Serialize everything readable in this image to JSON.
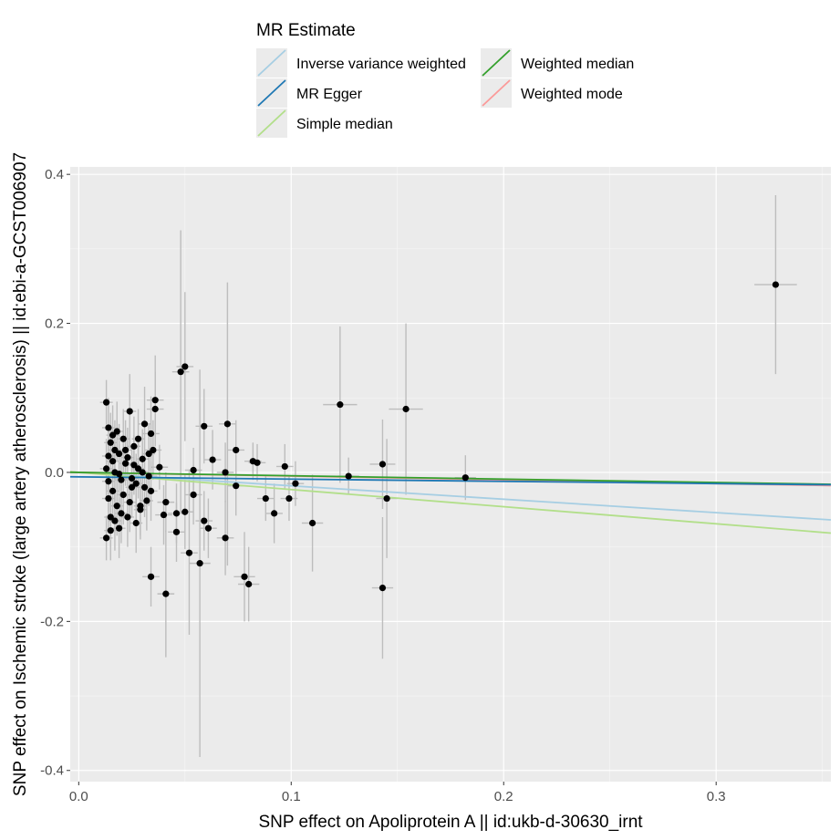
{
  "chart_data": {
    "type": "scatter",
    "xlabel": "SNP effect on Apoliprotein A || id:ukb-d-30630_irnt",
    "ylabel": "SNP effect on Ischemic stroke (large artery atherosclerosis) || id:ebi-a-GCST006907",
    "xlim": [
      -0.004,
      0.354
    ],
    "ylim": [
      -0.415,
      0.41
    ],
    "x_ticks": [
      0.0,
      0.1,
      0.2,
      0.3
    ],
    "x_tick_labels": [
      "0.0",
      "0.1",
      "0.2",
      "0.3"
    ],
    "y_ticks": [
      -0.4,
      -0.2,
      0.0,
      0.2,
      0.4
    ],
    "y_tick_labels": [
      "-0.4",
      "-0.2",
      "0.0",
      "0.2",
      "0.4"
    ],
    "grid": true,
    "legend_title": "MR Estimate",
    "legend_position": "top",
    "series": [
      {
        "name": "Inverse variance weighted",
        "color": "#a6cee3",
        "slope": -0.18,
        "intercept": 0.0
      },
      {
        "name": "MR Egger",
        "color": "#1f78b4",
        "slope": -0.03,
        "intercept": -0.006
      },
      {
        "name": "Simple median",
        "color": "#b2df8a",
        "slope": -0.23,
        "intercept": 0.0
      },
      {
        "name": "Weighted median",
        "color": "#33a02c",
        "slope": -0.045,
        "intercept": 0.0
      },
      {
        "name": "Weighted mode",
        "color": "#fb9a99",
        "slope": -0.05,
        "intercept": 0.0
      }
    ],
    "legend_layout": [
      [
        "Inverse variance weighted",
        "Weighted median"
      ],
      [
        "MR Egger",
        "Weighted mode"
      ],
      [
        "Simple median"
      ]
    ],
    "points": [
      {
        "x": 0.328,
        "y": 0.252,
        "se_x": 0.01,
        "se_y": 0.12
      },
      {
        "x": 0.154,
        "y": 0.085,
        "se_x": 0.008,
        "se_y": 0.115
      },
      {
        "x": 0.123,
        "y": 0.091,
        "se_x": 0.008,
        "se_y": 0.105
      },
      {
        "x": 0.182,
        "y": -0.007,
        "se_x": 0.005,
        "se_y": 0.03
      },
      {
        "x": 0.143,
        "y": 0.011,
        "se_x": 0.006,
        "se_y": 0.06
      },
      {
        "x": 0.145,
        "y": -0.035,
        "se_x": 0.005,
        "se_y": 0.08
      },
      {
        "x": 0.143,
        "y": -0.155,
        "se_x": 0.005,
        "se_y": 0.095
      },
      {
        "x": 0.127,
        "y": -0.005,
        "se_x": 0.005,
        "se_y": 0.025
      },
      {
        "x": 0.11,
        "y": -0.068,
        "se_x": 0.005,
        "se_y": 0.065
      },
      {
        "x": 0.102,
        "y": -0.015,
        "se_x": 0.004,
        "se_y": 0.03
      },
      {
        "x": 0.099,
        "y": -0.035,
        "se_x": 0.004,
        "se_y": 0.03
      },
      {
        "x": 0.097,
        "y": 0.008,
        "se_x": 0.004,
        "se_y": 0.03
      },
      {
        "x": 0.092,
        "y": -0.055,
        "se_x": 0.004,
        "se_y": 0.04
      },
      {
        "x": 0.088,
        "y": -0.035,
        "se_x": 0.004,
        "se_y": 0.03
      },
      {
        "x": 0.084,
        "y": 0.013,
        "se_x": 0.004,
        "se_y": 0.025
      },
      {
        "x": 0.082,
        "y": 0.015,
        "se_x": 0.004,
        "se_y": 0.025
      },
      {
        "x": 0.08,
        "y": -0.15,
        "se_x": 0.005,
        "se_y": 0.05
      },
      {
        "x": 0.078,
        "y": -0.14,
        "se_x": 0.005,
        "se_y": 0.06
      },
      {
        "x": 0.074,
        "y": 0.03,
        "se_x": 0.004,
        "se_y": 0.04
      },
      {
        "x": 0.074,
        "y": -0.018,
        "se_x": 0.004,
        "se_y": 0.04
      },
      {
        "x": 0.07,
        "y": 0.065,
        "se_x": 0.004,
        "se_y": 0.19
      },
      {
        "x": 0.069,
        "y": 0.0,
        "se_x": 0.004,
        "se_y": 0.04
      },
      {
        "x": 0.069,
        "y": -0.088,
        "se_x": 0.004,
        "se_y": 0.05
      },
      {
        "x": 0.063,
        "y": 0.017,
        "se_x": 0.004,
        "se_y": 0.04
      },
      {
        "x": 0.061,
        "y": -0.075,
        "se_x": 0.004,
        "se_y": 0.04
      },
      {
        "x": 0.059,
        "y": 0.062,
        "se_x": 0.004,
        "se_y": 0.05
      },
      {
        "x": 0.059,
        "y": -0.065,
        "se_x": 0.004,
        "se_y": 0.04
      },
      {
        "x": 0.057,
        "y": -0.122,
        "se_x": 0.005,
        "se_y": 0.26
      },
      {
        "x": 0.054,
        "y": 0.003,
        "se_x": 0.004,
        "se_y": 0.03
      },
      {
        "x": 0.054,
        "y": -0.03,
        "se_x": 0.004,
        "se_y": 0.04
      },
      {
        "x": 0.052,
        "y": -0.108,
        "se_x": 0.004,
        "se_y": 0.11
      },
      {
        "x": 0.05,
        "y": 0.142,
        "se_x": 0.004,
        "se_y": 0.1
      },
      {
        "x": 0.05,
        "y": -0.053,
        "se_x": 0.004,
        "se_y": 0.05
      },
      {
        "x": 0.048,
        "y": 0.135,
        "se_x": 0.004,
        "se_y": 0.19
      },
      {
        "x": 0.046,
        "y": -0.08,
        "se_x": 0.004,
        "se_y": 0.04
      },
      {
        "x": 0.046,
        "y": -0.055,
        "se_x": 0.004,
        "se_y": 0.04
      },
      {
        "x": 0.041,
        "y": -0.163,
        "se_x": 0.004,
        "se_y": 0.085
      },
      {
        "x": 0.041,
        "y": -0.04,
        "se_x": 0.004,
        "se_y": 0.04
      },
      {
        "x": 0.04,
        "y": -0.057,
        "se_x": 0.004,
        "se_y": 0.04
      },
      {
        "x": 0.038,
        "y": 0.007,
        "se_x": 0.004,
        "se_y": 0.03
      },
      {
        "x": 0.036,
        "y": 0.097,
        "se_x": 0.004,
        "se_y": 0.06
      },
      {
        "x": 0.036,
        "y": 0.085,
        "se_x": 0.004,
        "se_y": 0.05
      },
      {
        "x": 0.035,
        "y": 0.03,
        "se_x": 0.004,
        "se_y": 0.04
      },
      {
        "x": 0.034,
        "y": -0.14,
        "se_x": 0.004,
        "se_y": 0.04
      },
      {
        "x": 0.034,
        "y": 0.052,
        "se_x": 0.004,
        "se_y": 0.05
      },
      {
        "x": 0.033,
        "y": -0.005,
        "se_x": 0.004,
        "se_y": 0.04
      },
      {
        "x": 0.032,
        "y": -0.038,
        "se_x": 0.003,
        "se_y": 0.04
      },
      {
        "x": 0.031,
        "y": 0.065,
        "se_x": 0.003,
        "se_y": 0.05
      },
      {
        "x": 0.03,
        "y": 0.018,
        "se_x": 0.003,
        "se_y": 0.04
      },
      {
        "x": 0.029,
        "y": -0.045,
        "se_x": 0.003,
        "se_y": 0.04
      },
      {
        "x": 0.028,
        "y": 0.005,
        "se_x": 0.003,
        "se_y": 0.04
      },
      {
        "x": 0.027,
        "y": -0.068,
        "se_x": 0.003,
        "se_y": 0.04
      },
      {
        "x": 0.026,
        "y": 0.035,
        "se_x": 0.003,
        "se_y": 0.04
      },
      {
        "x": 0.025,
        "y": -0.02,
        "se_x": 0.003,
        "se_y": 0.04
      },
      {
        "x": 0.024,
        "y": 0.082,
        "se_x": 0.003,
        "se_y": 0.05
      },
      {
        "x": 0.023,
        "y": -0.06,
        "se_x": 0.003,
        "se_y": 0.04
      },
      {
        "x": 0.022,
        "y": 0.012,
        "se_x": 0.003,
        "se_y": 0.03
      },
      {
        "x": 0.021,
        "y": -0.03,
        "se_x": 0.003,
        "se_y": 0.04
      },
      {
        "x": 0.021,
        "y": 0.045,
        "se_x": 0.003,
        "se_y": 0.04
      },
      {
        "x": 0.02,
        "y": -0.01,
        "se_x": 0.003,
        "se_y": 0.04
      },
      {
        "x": 0.019,
        "y": 0.025,
        "se_x": 0.003,
        "se_y": 0.04
      },
      {
        "x": 0.019,
        "y": -0.075,
        "se_x": 0.003,
        "se_y": 0.04
      },
      {
        "x": 0.018,
        "y": 0.055,
        "se_x": 0.003,
        "se_y": 0.04
      },
      {
        "x": 0.018,
        "y": -0.045,
        "se_x": 0.003,
        "se_y": 0.04
      },
      {
        "x": 0.017,
        "y": 0.0,
        "se_x": 0.003,
        "se_y": 0.04
      },
      {
        "x": 0.017,
        "y": 0.03,
        "se_x": 0.003,
        "se_y": 0.04
      },
      {
        "x": 0.016,
        "y": -0.025,
        "se_x": 0.003,
        "se_y": 0.04
      },
      {
        "x": 0.016,
        "y": 0.015,
        "se_x": 0.003,
        "se_y": 0.04
      },
      {
        "x": 0.015,
        "y": -0.06,
        "se_x": 0.003,
        "se_y": 0.04
      },
      {
        "x": 0.015,
        "y": 0.04,
        "se_x": 0.003,
        "se_y": 0.04
      },
      {
        "x": 0.014,
        "y": -0.012,
        "se_x": 0.003,
        "se_y": 0.04
      },
      {
        "x": 0.014,
        "y": 0.022,
        "se_x": 0.003,
        "se_y": 0.04
      },
      {
        "x": 0.014,
        "y": -0.035,
        "se_x": 0.003,
        "se_y": 0.04
      },
      {
        "x": 0.013,
        "y": 0.094,
        "se_x": 0.003,
        "se_y": 0.03
      },
      {
        "x": 0.013,
        "y": -0.088,
        "se_x": 0.003,
        "se_y": 0.03
      },
      {
        "x": 0.013,
        "y": 0.005,
        "se_x": 0.003,
        "se_y": 0.04
      },
      {
        "x": 0.022,
        "y": 0.03,
        "se_x": 0.003,
        "se_y": 0.04
      },
      {
        "x": 0.024,
        "y": -0.04,
        "se_x": 0.003,
        "se_y": 0.04
      },
      {
        "x": 0.026,
        "y": 0.01,
        "se_x": 0.003,
        "se_y": 0.04
      },
      {
        "x": 0.027,
        "y": -0.015,
        "se_x": 0.003,
        "se_y": 0.04
      },
      {
        "x": 0.028,
        "y": 0.045,
        "se_x": 0.003,
        "se_y": 0.04
      },
      {
        "x": 0.029,
        "y": -0.05,
        "se_x": 0.003,
        "se_y": 0.04
      },
      {
        "x": 0.03,
        "y": 0.0,
        "se_x": 0.003,
        "se_y": 0.04
      },
      {
        "x": 0.031,
        "y": -0.02,
        "se_x": 0.003,
        "se_y": 0.04
      },
      {
        "x": 0.02,
        "y": -0.055,
        "se_x": 0.003,
        "se_y": 0.04
      },
      {
        "x": 0.017,
        "y": -0.065,
        "se_x": 0.003,
        "se_y": 0.04
      },
      {
        "x": 0.016,
        "y": 0.05,
        "se_x": 0.003,
        "se_y": 0.04
      },
      {
        "x": 0.019,
        "y": -0.002,
        "se_x": 0.003,
        "se_y": 0.04
      },
      {
        "x": 0.023,
        "y": 0.02,
        "se_x": 0.003,
        "se_y": 0.04
      },
      {
        "x": 0.025,
        "y": -0.008,
        "se_x": 0.003,
        "se_y": 0.04
      },
      {
        "x": 0.033,
        "y": 0.025,
        "se_x": 0.003,
        "se_y": 0.04
      },
      {
        "x": 0.034,
        "y": -0.025,
        "se_x": 0.003,
        "se_y": 0.04
      },
      {
        "x": 0.014,
        "y": 0.06,
        "se_x": 0.003,
        "se_y": 0.04
      },
      {
        "x": 0.015,
        "y": -0.078,
        "se_x": 0.003,
        "se_y": 0.04
      }
    ]
  }
}
